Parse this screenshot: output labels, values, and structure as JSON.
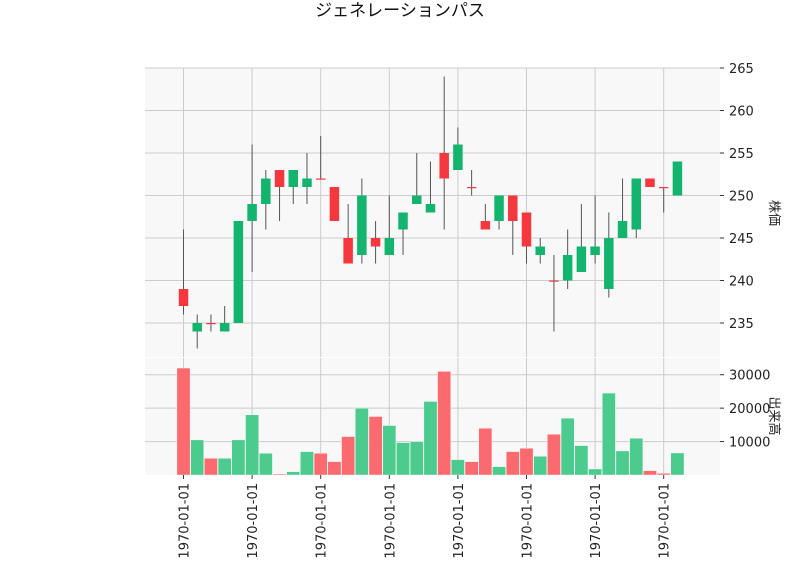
{
  "chart_data": {
    "type": "candlestick",
    "title": "ジェネレーションパス",
    "price_panel": {
      "ylabel": "株価",
      "ylim": [
        231,
        265
      ],
      "yticks": [
        235,
        240,
        245,
        250,
        255,
        260,
        265
      ],
      "candles": [
        {
          "open": 239,
          "high": 246,
          "low": 236,
          "close": 237
        },
        {
          "open": 234,
          "high": 236,
          "low": 232,
          "close": 235
        },
        {
          "open": 235,
          "high": 236,
          "low": 234,
          "close": 235
        },
        {
          "open": 234,
          "high": 237,
          "low": 234,
          "close": 235
        },
        {
          "open": 235,
          "high": 247,
          "low": 235,
          "close": 247
        },
        {
          "open": 247,
          "high": 256,
          "low": 241,
          "close": 249
        },
        {
          "open": 249,
          "high": 253,
          "low": 246,
          "close": 252
        },
        {
          "open": 253,
          "high": 253,
          "low": 247,
          "close": 251
        },
        {
          "open": 251,
          "high": 253,
          "low": 249,
          "close": 253
        },
        {
          "open": 251,
          "high": 255,
          "low": 249,
          "close": 252
        },
        {
          "open": 252,
          "high": 257,
          "low": 252,
          "close": 252
        },
        {
          "open": 251,
          "high": 251,
          "low": 247,
          "close": 247
        },
        {
          "open": 245,
          "high": 249,
          "low": 242,
          "close": 242
        },
        {
          "open": 243,
          "high": 252,
          "low": 242,
          "close": 250
        },
        {
          "open": 245,
          "high": 247,
          "low": 242,
          "close": 244
        },
        {
          "open": 243,
          "high": 250,
          "low": 243,
          "close": 245
        },
        {
          "open": 246,
          "high": 248,
          "low": 243,
          "close": 248
        },
        {
          "open": 249,
          "high": 255,
          "low": 249,
          "close": 250
        },
        {
          "open": 248,
          "high": 254,
          "low": 248,
          "close": 249
        },
        {
          "open": 255,
          "high": 264,
          "low": 246,
          "close": 252
        },
        {
          "open": 253,
          "high": 258,
          "low": 253,
          "close": 256
        },
        {
          "open": 251,
          "high": 253,
          "low": 250,
          "close": 251
        },
        {
          "open": 247,
          "high": 249,
          "low": 246,
          "close": 246
        },
        {
          "open": 247,
          "high": 250,
          "low": 246,
          "close": 250
        },
        {
          "open": 250,
          "high": 250,
          "low": 243,
          "close": 247
        },
        {
          "open": 248,
          "high": 248,
          "low": 242,
          "close": 244
        },
        {
          "open": 243,
          "high": 245,
          "low": 242,
          "close": 244
        },
        {
          "open": 240,
          "high": 243,
          "low": 234,
          "close": 240
        },
        {
          "open": 240,
          "high": 246,
          "low": 239,
          "close": 243
        },
        {
          "open": 241,
          "high": 249,
          "low": 241,
          "close": 244
        },
        {
          "open": 243,
          "high": 250,
          "low": 242,
          "close": 244
        },
        {
          "open": 239,
          "high": 248,
          "low": 238,
          "close": 245
        },
        {
          "open": 245,
          "high": 252,
          "low": 245,
          "close": 247
        },
        {
          "open": 246,
          "high": 252,
          "low": 245,
          "close": 252
        },
        {
          "open": 252,
          "high": 252,
          "low": 251,
          "close": 251
        },
        {
          "open": 251,
          "high": 251,
          "low": 248,
          "close": 251
        },
        {
          "open": 250,
          "high": 254,
          "low": 250,
          "close": 254
        }
      ]
    },
    "volume_panel": {
      "ylabel": "出来高",
      "ylim": [
        0,
        35000
      ],
      "yticks": [
        10000,
        20000,
        30000
      ],
      "ytick_labels": [
        "10000",
        "20000",
        "30000"
      ],
      "values": [
        32000,
        10500,
        5000,
        5000,
        10500,
        18000,
        6500,
        300,
        1000,
        7000,
        6500,
        4000,
        11500,
        20000,
        17500,
        14800,
        9700,
        10000,
        22000,
        31000,
        4600,
        4000,
        14000,
        2500,
        7000,
        8000,
        5600,
        12200,
        17000,
        8800,
        1800,
        24500,
        7200,
        11000,
        1300,
        500,
        6600
      ]
    },
    "x_tick_labels": [
      "1970-01-01",
      "1970-01-01",
      "1970-01-01",
      "1970-01-01",
      "1970-01-01",
      "1970-01-01",
      "1970-01-01",
      "1970-01-01"
    ],
    "x_tick_indices": [
      0,
      5,
      10,
      15,
      20,
      25,
      30,
      35
    ],
    "colors": {
      "up": "#13b56e",
      "down": "#f5383e",
      "up_volume": "#4ccb8e",
      "down_volume": "#fb6a6e",
      "wick": "#555555",
      "grid": "#cccccc",
      "panel_bg": "#f8f8f8"
    },
    "grid": true
  }
}
